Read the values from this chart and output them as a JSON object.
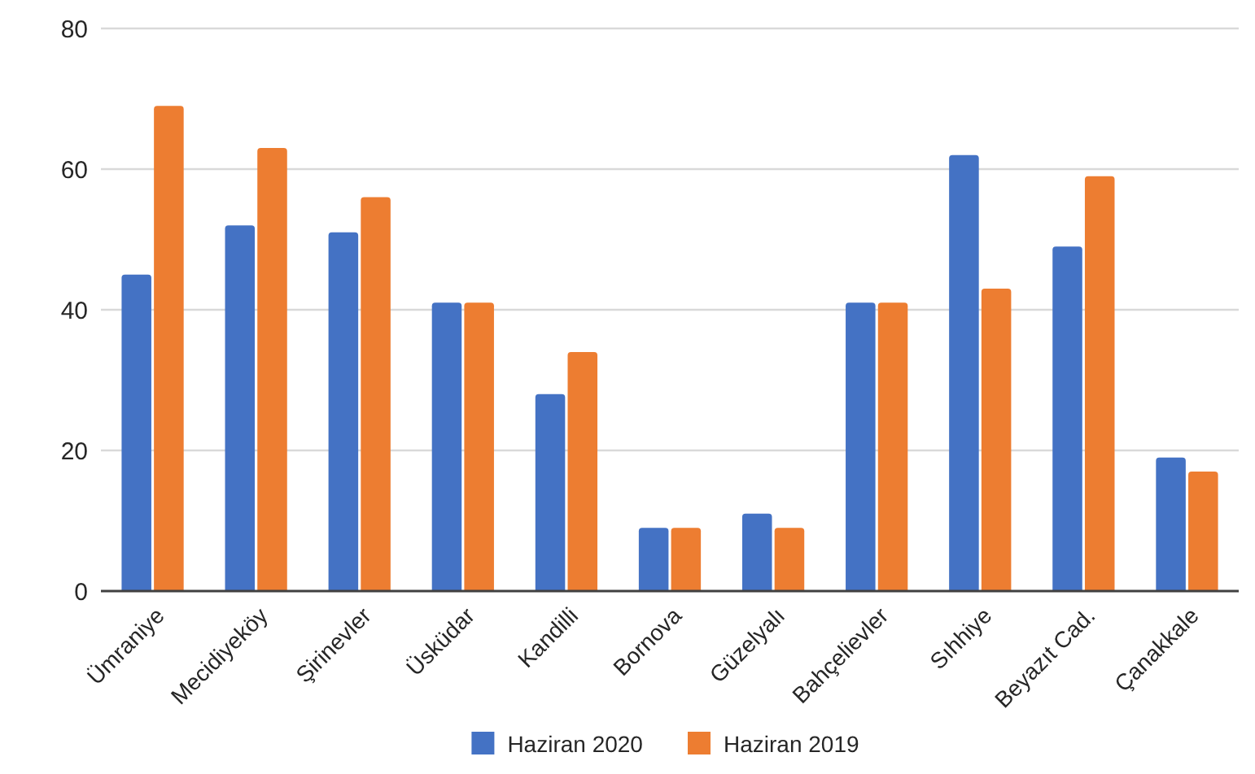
{
  "chart_data": {
    "type": "bar",
    "categories": [
      "Ümraniye",
      "Mecidiyeköy",
      "Şirinevler",
      "Üsküdar",
      "Kandilli",
      "Bornova",
      "Güzelyalı",
      "Bahçelievler",
      "Sıhhiye",
      "Beyazıt Cad.",
      "Çanakkale"
    ],
    "series": [
      {
        "name": "Haziran 2020",
        "color": "#4472c4",
        "values": [
          45,
          52,
          51,
          41,
          28,
          9,
          11,
          41,
          62,
          49,
          19
        ]
      },
      {
        "name": "Haziran 2019",
        "color": "#ed7d31",
        "values": [
          69,
          63,
          56,
          41,
          34,
          9,
          9,
          41,
          43,
          59,
          17
        ]
      }
    ],
    "ylim": [
      0,
      80
    ],
    "yticks": [
      0,
      20,
      40,
      60,
      80
    ],
    "grid": "y",
    "legend": "bottom"
  }
}
